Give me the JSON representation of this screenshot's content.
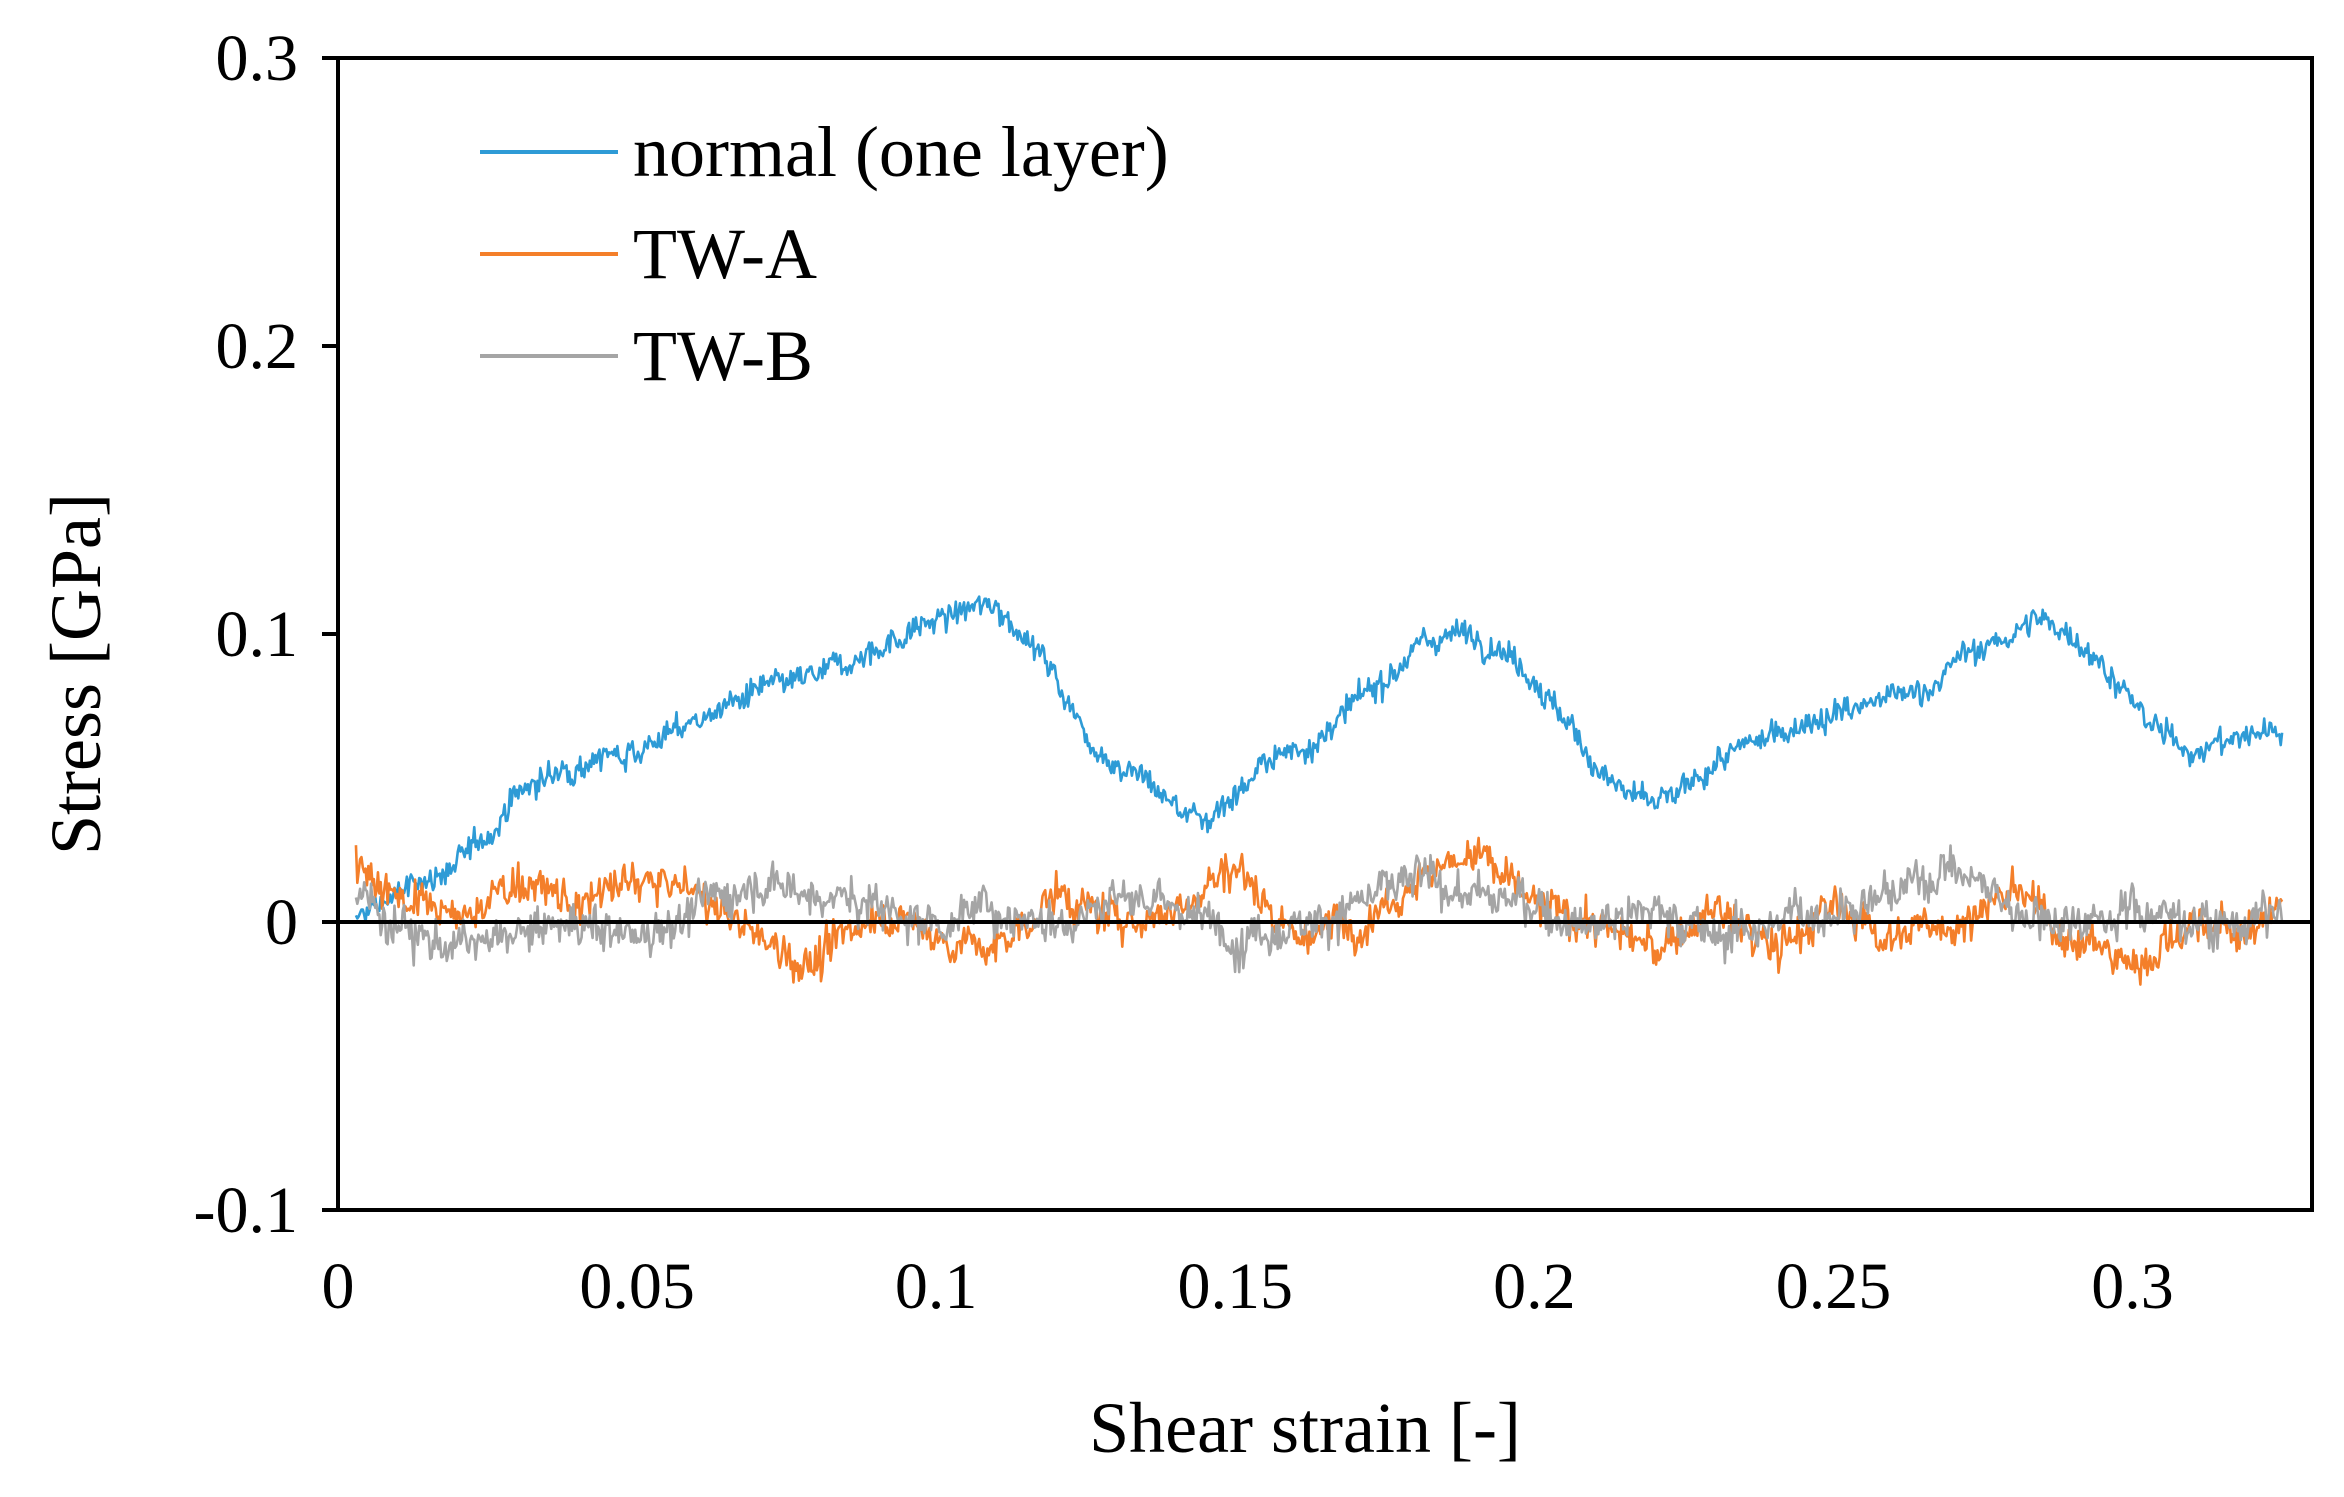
{
  "chart_data": {
    "type": "line",
    "title": "",
    "xlabel": "Shear strain [-]",
    "ylabel": "Stress [GPa]",
    "xlim": [
      0,
      0.33
    ],
    "ylim": [
      -0.1,
      0.3
    ],
    "x_ticks": [
      0,
      0.05,
      0.1,
      0.15,
      0.2,
      0.25,
      0.3
    ],
    "x_tick_labels": [
      "0",
      "0.05",
      "0.1",
      "0.15",
      "0.2",
      "0.25",
      "0.3"
    ],
    "y_ticks": [
      -0.1,
      0,
      0.1,
      0.2,
      0.3
    ],
    "y_tick_labels": [
      "-0.1",
      "0",
      "0.1",
      "0.2",
      "0.3"
    ],
    "legend_position": "top-left",
    "zero_line": true,
    "series": [
      {
        "name": "normal (one layer)",
        "color": "#2E9BD6",
        "noise_amplitude": 0.008,
        "x": [
          0.003,
          0.006,
          0.01,
          0.015,
          0.02,
          0.025,
          0.03,
          0.035,
          0.04,
          0.045,
          0.05,
          0.055,
          0.06,
          0.065,
          0.07,
          0.075,
          0.08,
          0.085,
          0.09,
          0.095,
          0.1,
          0.105,
          0.11,
          0.115,
          0.12,
          0.125,
          0.13,
          0.135,
          0.14,
          0.145,
          0.15,
          0.155,
          0.16,
          0.165,
          0.17,
          0.175,
          0.18,
          0.185,
          0.19,
          0.195,
          0.2,
          0.205,
          0.21,
          0.215,
          0.22,
          0.225,
          0.23,
          0.235,
          0.24,
          0.245,
          0.25,
          0.255,
          0.26,
          0.265,
          0.27,
          0.275,
          0.28,
          0.285,
          0.29,
          0.295,
          0.3,
          0.305,
          0.31,
          0.315,
          0.32,
          0.325
        ],
        "y": [
          0.0,
          0.005,
          0.01,
          0.015,
          0.02,
          0.03,
          0.045,
          0.05,
          0.055,
          0.058,
          0.06,
          0.065,
          0.07,
          0.075,
          0.08,
          0.082,
          0.085,
          0.09,
          0.095,
          0.1,
          0.105,
          0.108,
          0.11,
          0.1,
          0.085,
          0.065,
          0.055,
          0.05,
          0.04,
          0.035,
          0.045,
          0.055,
          0.06,
          0.065,
          0.075,
          0.085,
          0.095,
          0.1,
          0.1,
          0.095,
          0.085,
          0.07,
          0.055,
          0.045,
          0.04,
          0.045,
          0.055,
          0.06,
          0.065,
          0.07,
          0.072,
          0.075,
          0.078,
          0.08,
          0.09,
          0.095,
          0.1,
          0.105,
          0.1,
          0.09,
          0.075,
          0.065,
          0.06,
          0.062,
          0.065,
          0.068
        ]
      },
      {
        "name": "TW-A",
        "color": "#F47F2A",
        "noise_amplitude": 0.012,
        "x": [
          0.003,
          0.01,
          0.02,
          0.03,
          0.04,
          0.05,
          0.06,
          0.07,
          0.08,
          0.09,
          0.1,
          0.11,
          0.12,
          0.13,
          0.14,
          0.15,
          0.16,
          0.17,
          0.18,
          0.19,
          0.2,
          0.21,
          0.22,
          0.23,
          0.24,
          0.25,
          0.26,
          0.27,
          0.28,
          0.29,
          0.3,
          0.31,
          0.32,
          0.325
        ],
        "y": [
          0.02,
          0.01,
          0.0,
          0.015,
          0.005,
          0.015,
          0.01,
          -0.005,
          -0.015,
          0.005,
          -0.005,
          -0.01,
          0.01,
          0.0,
          0.005,
          0.02,
          -0.005,
          0.0,
          0.015,
          0.025,
          0.005,
          0.0,
          -0.01,
          0.005,
          -0.01,
          0.005,
          -0.005,
          0.0,
          0.01,
          -0.005,
          -0.015,
          0.0,
          -0.005,
          0.01
        ]
      },
      {
        "name": "TW-B",
        "color": "#A5A5A5",
        "noise_amplitude": 0.013,
        "x": [
          0.003,
          0.01,
          0.02,
          0.03,
          0.04,
          0.05,
          0.06,
          0.07,
          0.08,
          0.09,
          0.1,
          0.11,
          0.12,
          0.13,
          0.14,
          0.15,
          0.16,
          0.17,
          0.18,
          0.19,
          0.2,
          0.21,
          0.22,
          0.23,
          0.24,
          0.25,
          0.26,
          0.27,
          0.28,
          0.29,
          0.3,
          0.31,
          0.32,
          0.325
        ],
        "y": [
          0.01,
          0.0,
          -0.01,
          -0.005,
          0.0,
          -0.005,
          0.005,
          0.015,
          0.01,
          0.005,
          0.0,
          0.005,
          0.0,
          0.01,
          0.005,
          -0.005,
          0.0,
          0.005,
          0.015,
          0.01,
          0.005,
          0.0,
          0.005,
          -0.005,
          0.0,
          0.005,
          0.01,
          0.02,
          0.005,
          0.0,
          0.005,
          0.0,
          0.0,
          0.005
        ]
      }
    ]
  }
}
